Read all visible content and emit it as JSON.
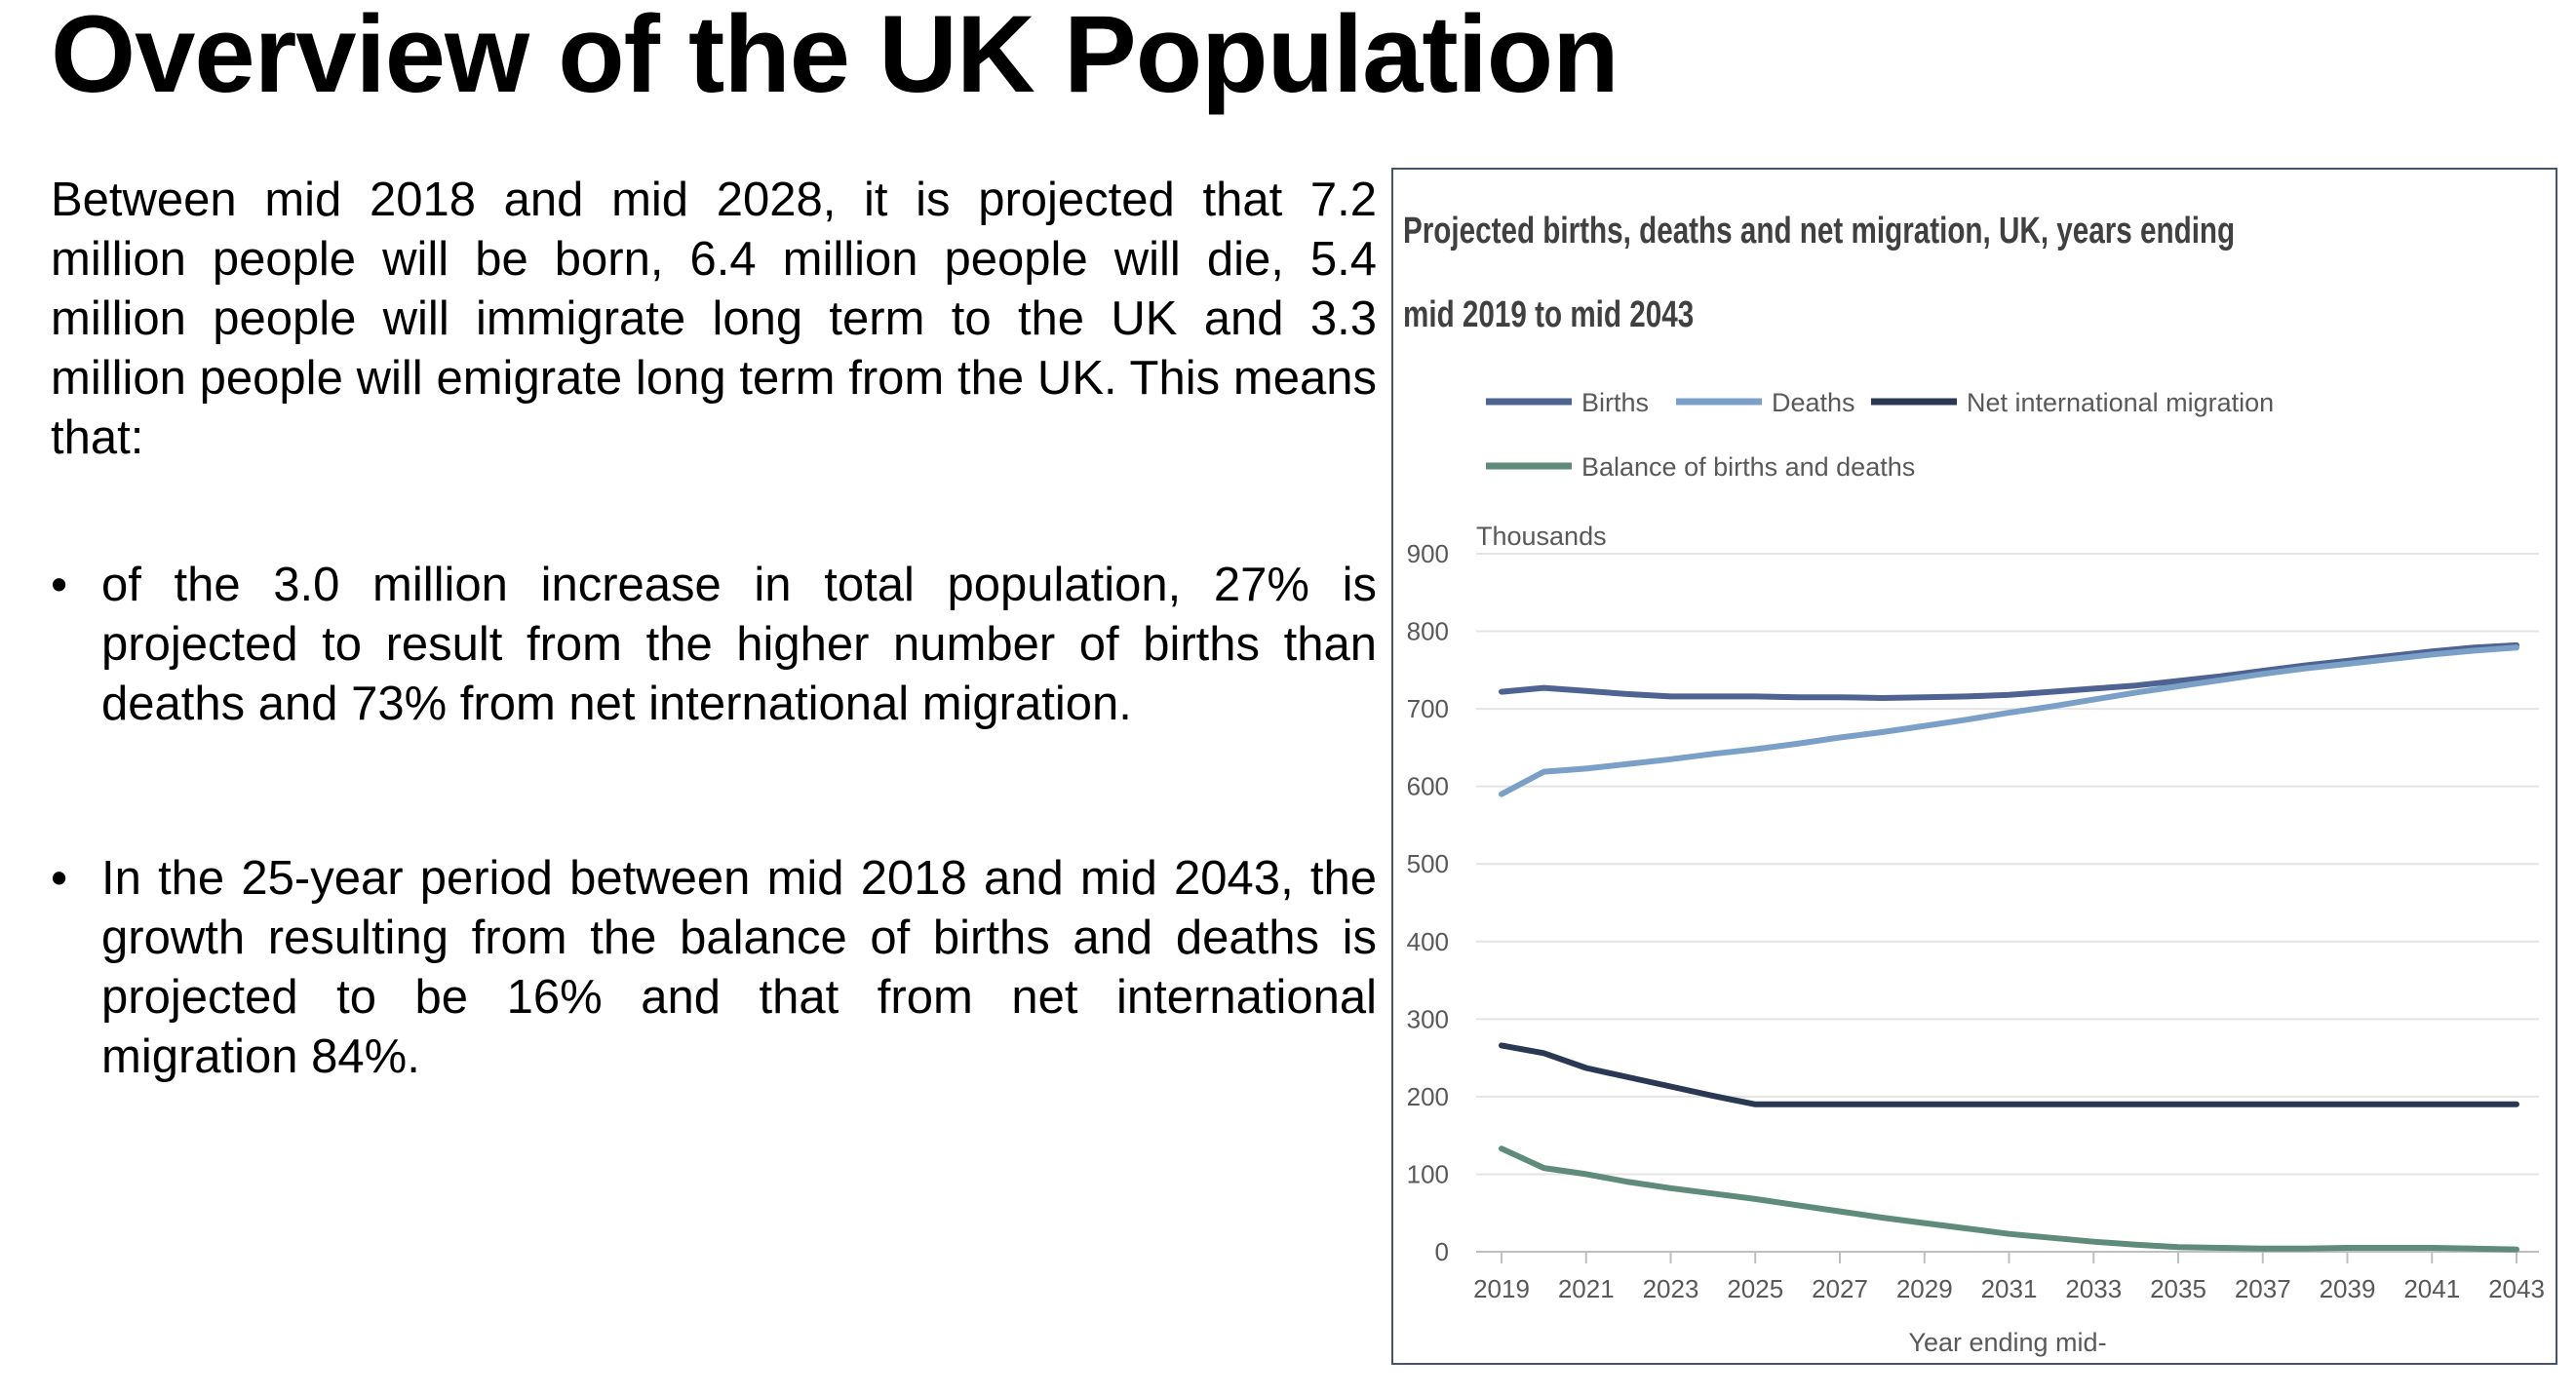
{
  "slide": {
    "title": "Overview of the UK Population",
    "intro": "Between mid 2018 and mid 2028, it is projected that 7.2 million people will be born, 6.4 million people will die, 5.4 million people will immigrate long term to the UK and 3.3 million people will emigrate long term from the UK. This means that:",
    "bullet_symbol": "•",
    "bullets": [
      "of the 3.0 million increase in total population, 27% is projected to result from the higher number of births than deaths and 73% from net international migration.",
      "In the 25-year period between mid 2018 and mid 2043, the growth resulting from the balance of births and deaths is projected to be 16% and that from net international migration  84%."
    ]
  },
  "chart_data": {
    "type": "line",
    "title": "Projected births, deaths and net migration, UK, years ending mid 2019 to mid 2043",
    "xlabel": "Year ending mid-",
    "ylabel": "Thousands",
    "ylim": [
      0,
      900
    ],
    "yticks": [
      0,
      100,
      200,
      300,
      400,
      500,
      600,
      700,
      800,
      900
    ],
    "xlim": [
      2019,
      2043
    ],
    "xticks": [
      2019,
      2021,
      2023,
      2025,
      2027,
      2029,
      2031,
      2033,
      2035,
      2037,
      2039,
      2041,
      2043
    ],
    "grid": true,
    "legend_position": "top",
    "x": [
      2019,
      2020,
      2021,
      2022,
      2023,
      2024,
      2025,
      2026,
      2027,
      2028,
      2029,
      2030,
      2031,
      2032,
      2033,
      2034,
      2035,
      2036,
      2037,
      2038,
      2039,
      2040,
      2041,
      2042,
      2043
    ],
    "series": [
      {
        "name": "Births",
        "color": "#4e6391",
        "values": [
          722,
          727,
          723,
          719,
          716,
          716,
          716,
          715,
          715,
          714,
          715,
          716,
          718,
          722,
          726,
          730,
          736,
          742,
          749,
          756,
          762,
          768,
          774,
          779,
          782
        ]
      },
      {
        "name": "Deaths",
        "color": "#7ba0c8",
        "values": [
          590,
          619,
          623,
          629,
          635,
          642,
          648,
          655,
          663,
          670,
          678,
          686,
          695,
          703,
          712,
          721,
          729,
          737,
          745,
          752,
          758,
          764,
          770,
          775,
          779
        ]
      },
      {
        "name": "Net international migration",
        "color": "#2a3854",
        "values": [
          266,
          256,
          237,
          225,
          213,
          201,
          190,
          190,
          190,
          190,
          190,
          190,
          190,
          190,
          190,
          190,
          190,
          190,
          190,
          190,
          190,
          190,
          190,
          190,
          190
        ]
      },
      {
        "name": "Balance of births and deaths",
        "color": "#5e8b7a",
        "values": [
          133,
          108,
          100,
          90,
          82,
          75,
          68,
          60,
          52,
          44,
          37,
          30,
          23,
          18,
          13,
          9,
          6,
          5,
          4,
          4,
          5,
          5,
          5,
          4,
          3
        ]
      }
    ]
  }
}
